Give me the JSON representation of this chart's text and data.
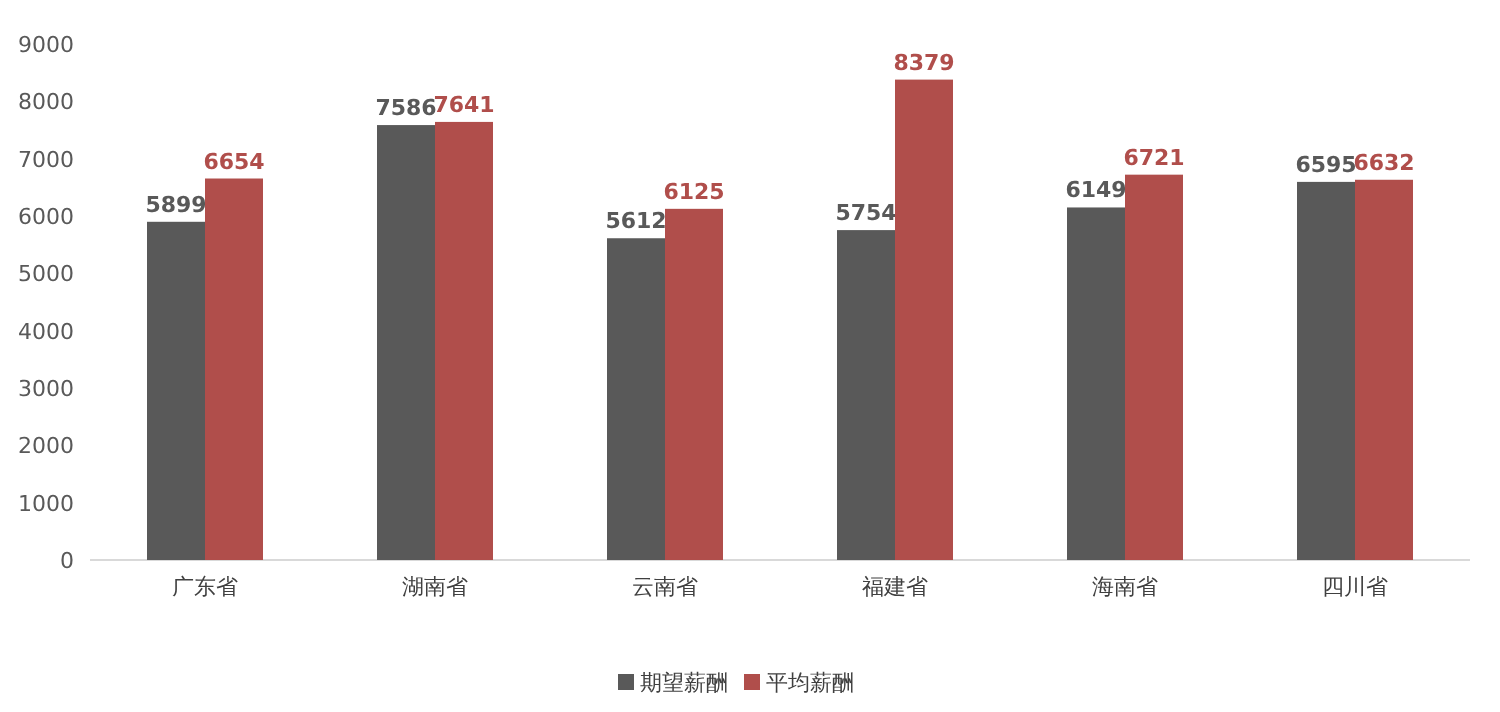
{
  "chart_data": {
    "type": "bar",
    "categories": [
      "广东省",
      "湖南省",
      "云南省",
      "福建省",
      "海南省",
      "四川省"
    ],
    "series": [
      {
        "name": "期望薪酬",
        "color": "#595959",
        "values": [
          5899,
          7586,
          5612,
          5754,
          6149,
          6595
        ]
      },
      {
        "name": "平均薪酬",
        "color": "#b04e4b",
        "values": [
          6654,
          7641,
          6125,
          8379,
          6721,
          6632
        ]
      }
    ],
    "ylim": [
      0,
      9000
    ],
    "yticks": [
      0,
      1000,
      2000,
      3000,
      4000,
      5000,
      6000,
      7000,
      8000,
      9000
    ],
    "data_labels": true,
    "legend": "bottom",
    "grid": false
  }
}
